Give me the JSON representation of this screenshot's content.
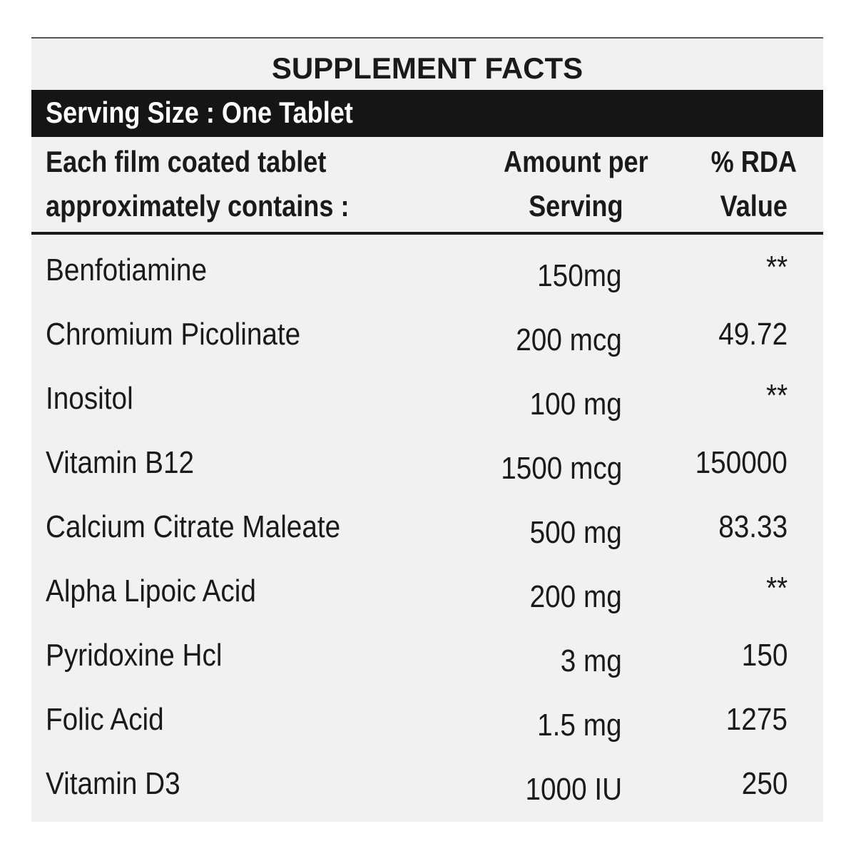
{
  "title": "SUPPLEMENT FACTS",
  "serving_size": "Serving Size : One Tablet",
  "headers": {
    "ingredient": [
      "Each film coated tablet",
      "approximately contains :"
    ],
    "amount": [
      "Amount per",
      "Serving"
    ],
    "rda": [
      "% RDA",
      "Value"
    ]
  },
  "rows": [
    {
      "name": "Benfotiamine",
      "amount": "150mg",
      "rda": "**"
    },
    {
      "name": "Chromium Picolinate",
      "amount": "200 mcg",
      "rda": "49.72"
    },
    {
      "name": "Inositol",
      "amount": "100 mg",
      "rda": "**"
    },
    {
      "name": "Vitamin B12",
      "amount": "1500 mcg",
      "rda": "150000"
    },
    {
      "name": "Calcium Citrate Maleate",
      "amount": "500 mg",
      "rda": "83.33"
    },
    {
      "name": "Alpha Lipoic Acid",
      "amount": "200 mg",
      "rda": "**"
    },
    {
      "name": "Pyridoxine Hcl",
      "amount": "3 mg",
      "rda": "150"
    },
    {
      "name": "Folic Acid",
      "amount": "1.5 mg",
      "rda": "1275"
    },
    {
      "name": "Vitamin D3",
      "amount": "1000 IU",
      "rda": "250"
    }
  ]
}
